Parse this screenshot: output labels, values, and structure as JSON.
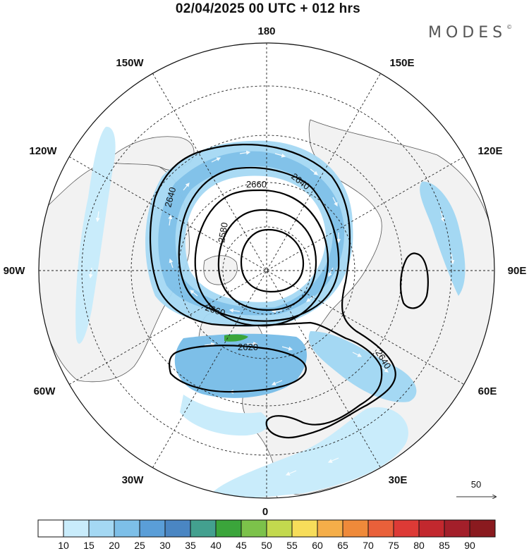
{
  "header": {
    "title": "02/04/2025  00 UTC  + 012 hrs",
    "brand": "MODES",
    "brand_mark": "©"
  },
  "map": {
    "projection": "polar stereographic, north pole",
    "meridian_labels": [
      "180",
      "150E",
      "120E",
      "90E",
      "60E",
      "30E",
      "0",
      "30W",
      "60W",
      "90W",
      "120W",
      "150W"
    ],
    "contour_labels": [
      "2580",
      "2620",
      "2640",
      "2640",
      "2640",
      "2660",
      "2660"
    ],
    "vector_reference": "50",
    "colors": {
      "land": "#f2f2f2",
      "ocean": "#ffffff",
      "coast": "#555555",
      "contour": "#000000",
      "wind_15": "#c9ecfb",
      "wind_20": "#a4d8f3",
      "wind_25": "#7dbfe8",
      "wind_30": "#5a9ed8",
      "wind_45": "#3ba53b"
    }
  },
  "colorbar": {
    "labels": [
      "10",
      "15",
      "20",
      "25",
      "30",
      "35",
      "40",
      "45",
      "50",
      "55",
      "60",
      "65",
      "70",
      "75",
      "80",
      "85",
      "90"
    ],
    "colors": [
      "#ffffff",
      "#c9ecfb",
      "#a4d8f3",
      "#7dbfe8",
      "#5a9ed8",
      "#4a86c3",
      "#43a08f",
      "#3ba53b",
      "#7cc24a",
      "#c3d94e",
      "#f7dd5a",
      "#f5ae49",
      "#ef8a3a",
      "#e9603a",
      "#dd3a36",
      "#c2282e",
      "#a31f2a",
      "#8a1a1f"
    ]
  }
}
